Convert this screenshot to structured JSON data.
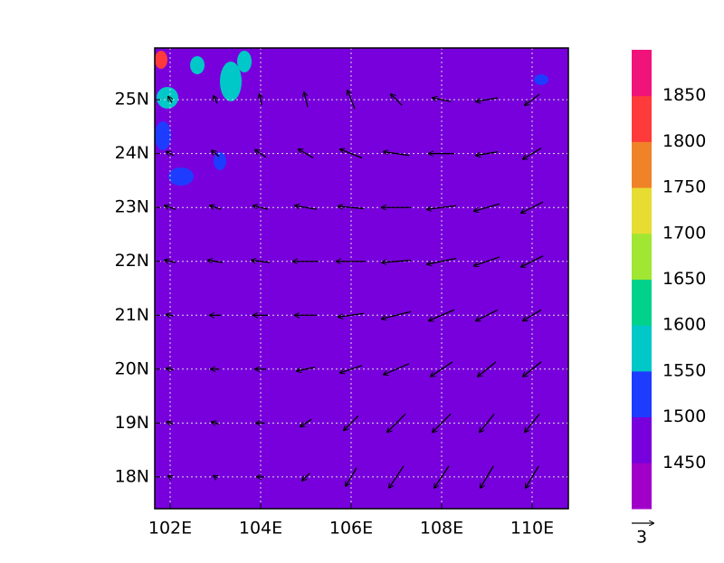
{
  "map": {
    "xlim": [
      101.66,
      110.8
    ],
    "ylim": [
      17.41,
      25.96
    ],
    "xticks": [
      {
        "value": 102,
        "label": "102E"
      },
      {
        "value": 104,
        "label": "104E"
      },
      {
        "value": 106,
        "label": "106E"
      },
      {
        "value": 108,
        "label": "108E"
      },
      {
        "value": 110,
        "label": "110E"
      }
    ],
    "yticks": [
      {
        "value": 18,
        "label": "18N"
      },
      {
        "value": 19,
        "label": "19N"
      },
      {
        "value": 20,
        "label": "20N"
      },
      {
        "value": 21,
        "label": "21N"
      },
      {
        "value": 22,
        "label": "22N"
      },
      {
        "value": 23,
        "label": "23N"
      },
      {
        "value": 24,
        "label": "24N"
      },
      {
        "value": 25,
        "label": "25N"
      }
    ],
    "fill_color": "#7800dc",
    "grid": true,
    "colorbar": {
      "levels": [
        1450,
        1500,
        1550,
        1600,
        1650,
        1700,
        1750,
        1800,
        1850
      ],
      "colors": [
        "#a000c8",
        "#7800dc",
        "#1e3cff",
        "#00c8c8",
        "#00d28c",
        "#a0e632",
        "#e6dc32",
        "#f08228",
        "#ff3a3a",
        "#f0147a"
      ]
    },
    "wind": {
      "reference_vector": 3,
      "lons": [
        102,
        103,
        104,
        105,
        106,
        107,
        108,
        109,
        110
      ],
      "lats": [
        25,
        24,
        23,
        22,
        21,
        20,
        19,
        18
      ],
      "u": [
        [
          -0.5,
          -0.5,
          -0.3,
          -0.5,
          -1,
          -1.5,
          -2.5,
          -3,
          -2
        ],
        [
          -1,
          -1,
          -1.5,
          -2,
          -3,
          -3.5,
          -3.5,
          -3,
          -2.5
        ],
        [
          -1.5,
          -1.5,
          -2,
          -3,
          -3.5,
          -4,
          -4,
          -3.5,
          -3
        ],
        [
          -1.5,
          -2,
          -2.5,
          -3.5,
          -4,
          -4,
          -4,
          -3.5,
          -3
        ],
        [
          -1,
          -1.5,
          -2,
          -3,
          -3.5,
          -4,
          -3.5,
          -3,
          -2.5
        ],
        [
          -1,
          -1.2,
          -1.5,
          -2.5,
          -3,
          -3.5,
          -3,
          -2.5,
          -2.5
        ],
        [
          -0.8,
          -1,
          -1.2,
          -1.5,
          -2,
          -2.5,
          -2.5,
          -2,
          -2
        ],
        [
          -0.5,
          -0.5,
          -1,
          -1,
          -1.5,
          -2,
          -2,
          -1.8,
          -1.8
        ]
      ],
      "v": [
        [
          0.8,
          1,
          1.5,
          2,
          2.5,
          1.5,
          0.5,
          -0.5,
          -1.5
        ],
        [
          0.5,
          0.8,
          1,
          1.2,
          1.2,
          0.5,
          0,
          -0.5,
          -1.5
        ],
        [
          0.5,
          0.5,
          0.5,
          0.5,
          0.3,
          0,
          -0.5,
          -1,
          -1.5
        ],
        [
          0.3,
          0.3,
          0.3,
          0,
          0,
          -0.3,
          -0.8,
          -1.2,
          -1.5
        ],
        [
          0.2,
          0,
          0,
          0,
          -0.5,
          -1,
          -1.5,
          -1.5,
          -1.5
        ],
        [
          0.2,
          0,
          0,
          -0.5,
          -1,
          -1.5,
          -2,
          -2,
          -2
        ],
        [
          0.3,
          0.3,
          0,
          -1,
          -2,
          -2.5,
          -2.5,
          -2.5,
          -2.5
        ],
        [
          0.3,
          0.3,
          0,
          -1,
          -2.5,
          -3,
          -3,
          -3,
          -3
        ]
      ]
    }
  }
}
